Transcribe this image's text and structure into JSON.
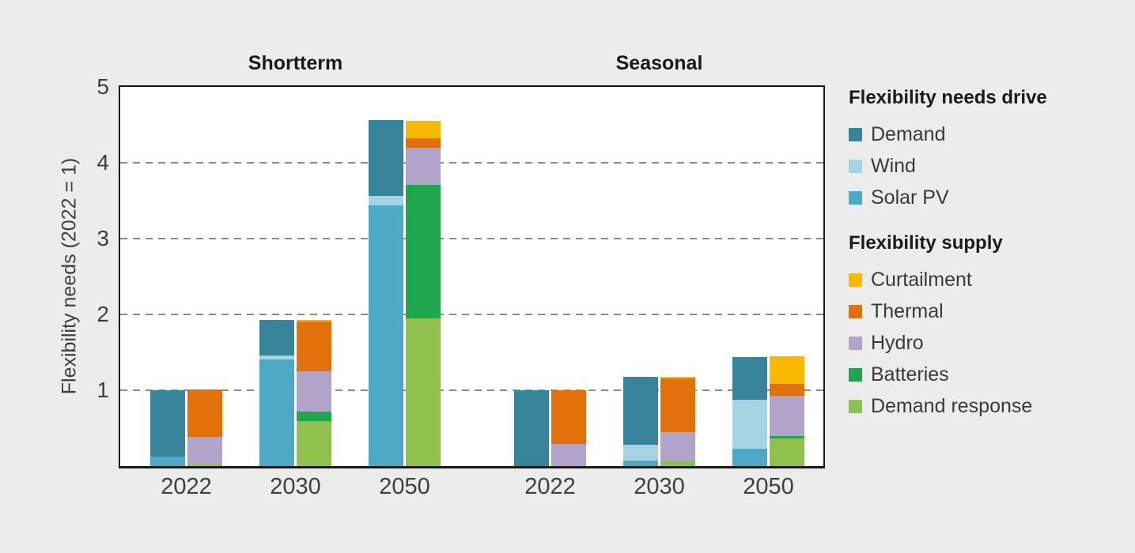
{
  "chart_data": {
    "type": "bar",
    "variant": "grouped-stacked-pairs",
    "ylabel": "Flexibility needs (2022 = 1)",
    "ylim": [
      0,
      5
    ],
    "yticks": [
      5,
      4,
      3,
      2,
      1
    ],
    "gridlines": [
      1,
      2,
      3,
      4
    ],
    "needs_stack_order": [
      "Solar PV",
      "Wind",
      "Demand"
    ],
    "supply_stack_order": [
      "Demand response",
      "Batteries",
      "Hydro",
      "Thermal",
      "Curtailment"
    ],
    "series_colors": {
      "Demand": "#36839a",
      "Wind": "#a5d3e4",
      "Solar PV": "#4da9c5",
      "Curtailment": "#f9b900",
      "Thermal": "#e2710c",
      "Hydro": "#b2a3ca",
      "Batteries": "#20a64d",
      "Demand response": "#90c14f"
    },
    "groups": [
      {
        "title": "Shortterm",
        "years": [
          {
            "year": "2022",
            "needs": {
              "Solar PV": 0.12,
              "Wind": 0,
              "Demand": 0.88
            },
            "supply": {
              "Demand response": 0.02,
              "Batteries": 0,
              "Hydro": 0.36,
              "Thermal": 0.62,
              "Curtailment": 0
            }
          },
          {
            "year": "2030",
            "needs": {
              "Solar PV": 1.41,
              "Wind": 0.05,
              "Demand": 0.47
            },
            "supply": {
              "Demand response": 0.59,
              "Batteries": 0.13,
              "Hydro": 0.53,
              "Thermal": 0.66,
              "Curtailment": 0.02
            }
          },
          {
            "year": "2050",
            "needs": {
              "Solar PV": 3.44,
              "Wind": 0.12,
              "Demand": 1.0
            },
            "supply": {
              "Demand response": 1.95,
              "Batteries": 1.76,
              "Hydro": 0.49,
              "Thermal": 0.13,
              "Curtailment": 0.23
            }
          }
        ]
      },
      {
        "title": "Seasonal",
        "years": [
          {
            "year": "2022",
            "needs": {
              "Solar PV": 0,
              "Wind": 0,
              "Demand": 1.0
            },
            "supply": {
              "Demand response": 0,
              "Batteries": 0,
              "Hydro": 0.29,
              "Thermal": 0.71,
              "Curtailment": 0
            }
          },
          {
            "year": "2030",
            "needs": {
              "Solar PV": 0.07,
              "Wind": 0.21,
              "Demand": 0.9
            },
            "supply": {
              "Demand response": 0.06,
              "Batteries": 0,
              "Hydro": 0.39,
              "Thermal": 0.71,
              "Curtailment": 0.02
            }
          },
          {
            "year": "2050",
            "needs": {
              "Solar PV": 0.23,
              "Wind": 0.65,
              "Demand": 0.56
            },
            "supply": {
              "Demand response": 0.36,
              "Batteries": 0.03,
              "Hydro": 0.53,
              "Thermal": 0.16,
              "Curtailment": 0.36
            }
          }
        ]
      }
    ],
    "legend": {
      "position": "right",
      "blocks": [
        {
          "title": "Flexibility needs drive",
          "items": [
            {
              "label": "Demand",
              "color": "#36839a"
            },
            {
              "label": "Wind",
              "color": "#a5d3e4"
            },
            {
              "label": "Solar PV",
              "color": "#4da9c5"
            }
          ]
        },
        {
          "title": "Flexibility supply",
          "items": [
            {
              "label": "Curtailment",
              "color": "#f9b900"
            },
            {
              "label": "Thermal",
              "color": "#e2710c"
            },
            {
              "label": "Hydro",
              "color": "#b2a3ca"
            },
            {
              "label": "Batteries",
              "color": "#20a64d"
            },
            {
              "label": "Demand response",
              "color": "#90c14f"
            }
          ]
        }
      ]
    },
    "colors": {
      "background": "#ececec",
      "plot_background": "#ffffff",
      "axis": "#1a1a1a",
      "gridline": "#8c8c8c",
      "text_primary": "#1a1a1a",
      "text_secondary": "#3f3f3f"
    }
  }
}
